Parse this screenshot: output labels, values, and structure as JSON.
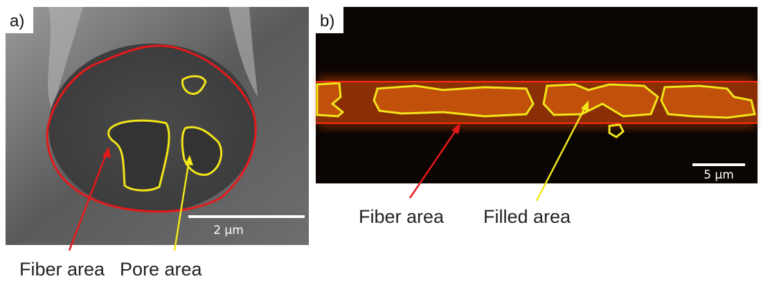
{
  "panels": [
    {
      "label": "a)",
      "scale_bar": "2 µm",
      "annotations": [
        "Fiber area",
        "Pore area"
      ]
    },
    {
      "label": "b)",
      "scale_bar": "5 µm",
      "annotations": [
        "Fiber area",
        "Filled area"
      ]
    }
  ]
}
